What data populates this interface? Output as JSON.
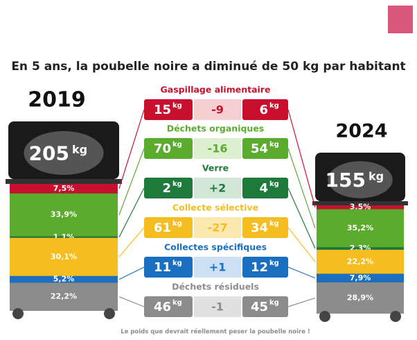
{
  "title": "En 5 ans, la poubelle noire a diminué de 50 kg par habitant",
  "unit": "kg",
  "bins": [
    {
      "year": "2019",
      "total": "205",
      "segments": [
        {
          "value": 7.5,
          "label": "7,5%"
        },
        {
          "value": 33.9,
          "label": "33,9%"
        },
        {
          "value": 1.1,
          "label": "1,1%"
        },
        {
          "value": 30.1,
          "label": "30,1%"
        },
        {
          "value": 5.2,
          "label": "5,2%"
        },
        {
          "value": 22.2,
          "label": "22,2%"
        }
      ]
    },
    {
      "year": "2024",
      "total": "155",
      "segments": [
        {
          "value": 3.5,
          "label": "3,5%"
        },
        {
          "value": 35.2,
          "label": "35,2%"
        },
        {
          "value": 2.3,
          "label": "2,3%"
        },
        {
          "value": 22.2,
          "label": "22,2%"
        },
        {
          "value": 7.9,
          "label": "7,9%"
        },
        {
          "value": 28.9,
          "label": "28,9%"
        }
      ]
    }
  ],
  "categories": [
    {
      "name": "Gaspillage alimentaire",
      "before": "15",
      "diff": "-9",
      "after": "6",
      "color": "#c8102e",
      "light": "#f6cfd3"
    },
    {
      "name": "Déchets organiques",
      "before": "70",
      "diff": "-16",
      "after": "54",
      "color": "#5aab2e",
      "light": "#dcefcf"
    },
    {
      "name": "Verre",
      "before": "2",
      "diff": "+2",
      "after": "4",
      "color": "#1e7a3a",
      "light": "#d1e6d7"
    },
    {
      "name": "Collecte sélective",
      "before": "61",
      "diff": "-27",
      "after": "34",
      "color": "#f5bd1f",
      "light": "#fbe8ae"
    },
    {
      "name": "Collectes spécifiques",
      "before": "11",
      "diff": "+1",
      "after": "12",
      "color": "#1a6fc0",
      "light": "#cde0f3"
    },
    {
      "name": "Déchets résiduels",
      "before": "46",
      "diff": "-1",
      "after": "45",
      "color": "#8c8c8c",
      "light": "#e0e0e0"
    }
  ],
  "note": "Le poids que devrait réellement peser la poubelle noire !"
}
